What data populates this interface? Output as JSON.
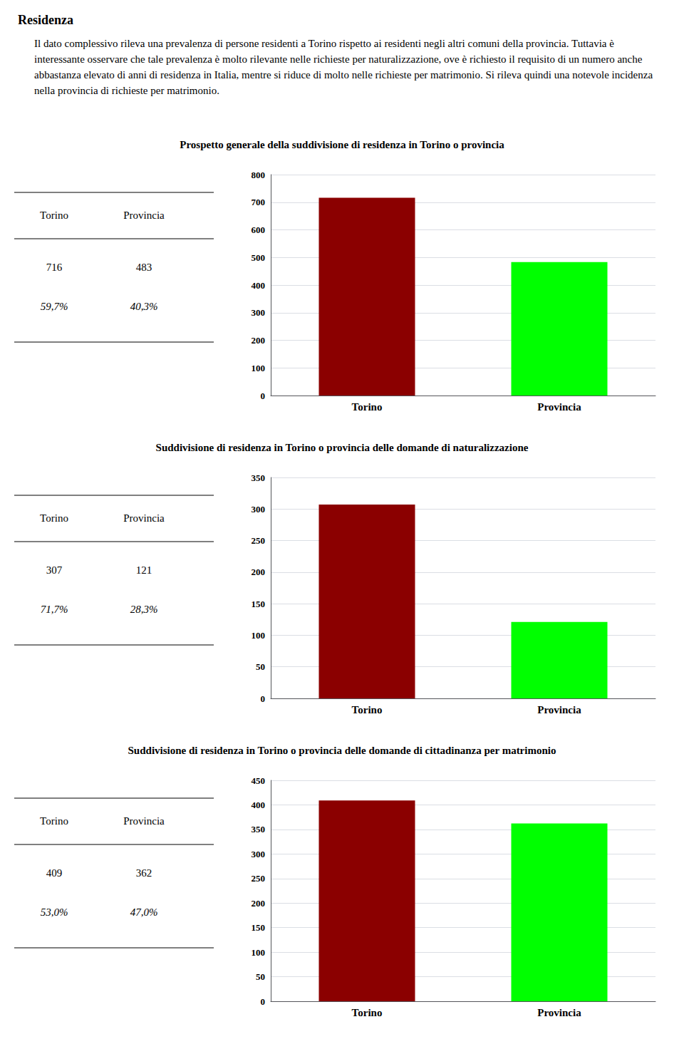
{
  "title": "Residenza",
  "annotations": [
    "Il dato complessivo rileva una prevalenza di persone residenti a Torino rispetto ai residenti negli altri comuni della provincia. Tuttavia è interessante osservare che tale prevalenza è molto rilevante nelle richieste per naturalizzazione, ove è richiesto il requisito di un numero anche abbastanza elevato di anni di residenza in Italia, mentre si riduce di molto nelle richieste per matrimonio. Si rileva quindi una notevole incidenza nella provincia di richieste per matrimonio."
  ],
  "chart_data": [
    {
      "type": "bar",
      "title": "Prospetto generale della suddivisione di residenza in Torino o provincia",
      "categories": [
        "Torino",
        "Provincia"
      ],
      "values": [
        716,
        483
      ],
      "shares": [
        59.7,
        40.3
      ],
      "share_labels": [
        "59,7%",
        "40,3%"
      ],
      "colors": [
        "#8B0000",
        "#00FF00"
      ],
      "ylim": [
        0,
        800
      ],
      "yticks": [
        0,
        100,
        200,
        300,
        400,
        500,
        600,
        700,
        800
      ],
      "grid": true
    },
    {
      "type": "bar",
      "title": "Suddivisione di residenza in Torino o provincia delle domande di naturalizzazione",
      "categories": [
        "Torino",
        "Provincia"
      ],
      "values": [
        307,
        121
      ],
      "shares": [
        71.7,
        28.3
      ],
      "share_labels": [
        "71,7%",
        "28,3%"
      ],
      "colors": [
        "#8B0000",
        "#00FF00"
      ],
      "ylim": [
        0,
        350
      ],
      "yticks": [
        0,
        50,
        100,
        150,
        200,
        250,
        300,
        350
      ],
      "grid": true
    },
    {
      "type": "bar",
      "title": "Suddivisione di residenza in Torino o provincia delle domande di cittadinanza per matrimonio",
      "categories": [
        "Torino",
        "Provincia"
      ],
      "values": [
        409,
        362
      ],
      "shares": [
        53.0,
        47.0
      ],
      "share_labels": [
        "53,0%",
        "47,0%"
      ],
      "colors": [
        "#8B0000",
        "#00FF00"
      ],
      "ylim": [
        0,
        450
      ],
      "yticks": [
        0,
        50,
        100,
        150,
        200,
        250,
        300,
        350,
        400,
        450
      ],
      "grid": true
    }
  ]
}
